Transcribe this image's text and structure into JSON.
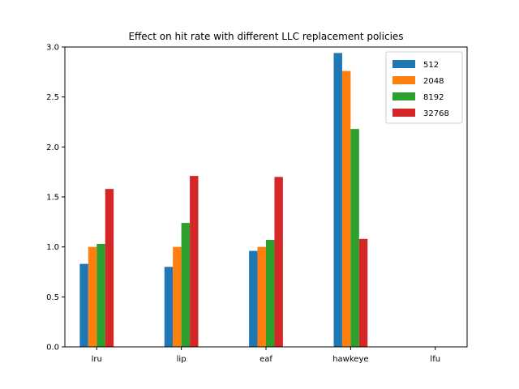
{
  "chart_data": {
    "type": "bar",
    "title": "Effect on hit rate with different LLC replacement policies",
    "xlabel": "",
    "ylabel": "",
    "categories": [
      "lru",
      "lip",
      "eaf",
      "hawkeye",
      "lfu"
    ],
    "series": [
      {
        "name": "512",
        "color": "#1f77b4",
        "values": [
          0.83,
          0.8,
          0.96,
          2.94,
          null
        ]
      },
      {
        "name": "2048",
        "color": "#ff7f0e",
        "values": [
          1.0,
          1.0,
          1.0,
          2.76,
          null
        ]
      },
      {
        "name": "8192",
        "color": "#2ca02c",
        "values": [
          1.03,
          1.24,
          1.07,
          2.18,
          null
        ]
      },
      {
        "name": "32768",
        "color": "#d62728",
        "values": [
          1.58,
          1.71,
          1.7,
          1.08,
          null
        ]
      }
    ],
    "ylim": [
      0,
      3.0
    ],
    "yticks": [
      0.0,
      0.5,
      1.0,
      1.5,
      2.0,
      2.5,
      3.0
    ],
    "ytick_labels": [
      "0.0",
      "0.5",
      "1.0",
      "1.5",
      "2.0",
      "2.5",
      "3.0"
    ],
    "grid": false,
    "legend_position": "top-right"
  }
}
